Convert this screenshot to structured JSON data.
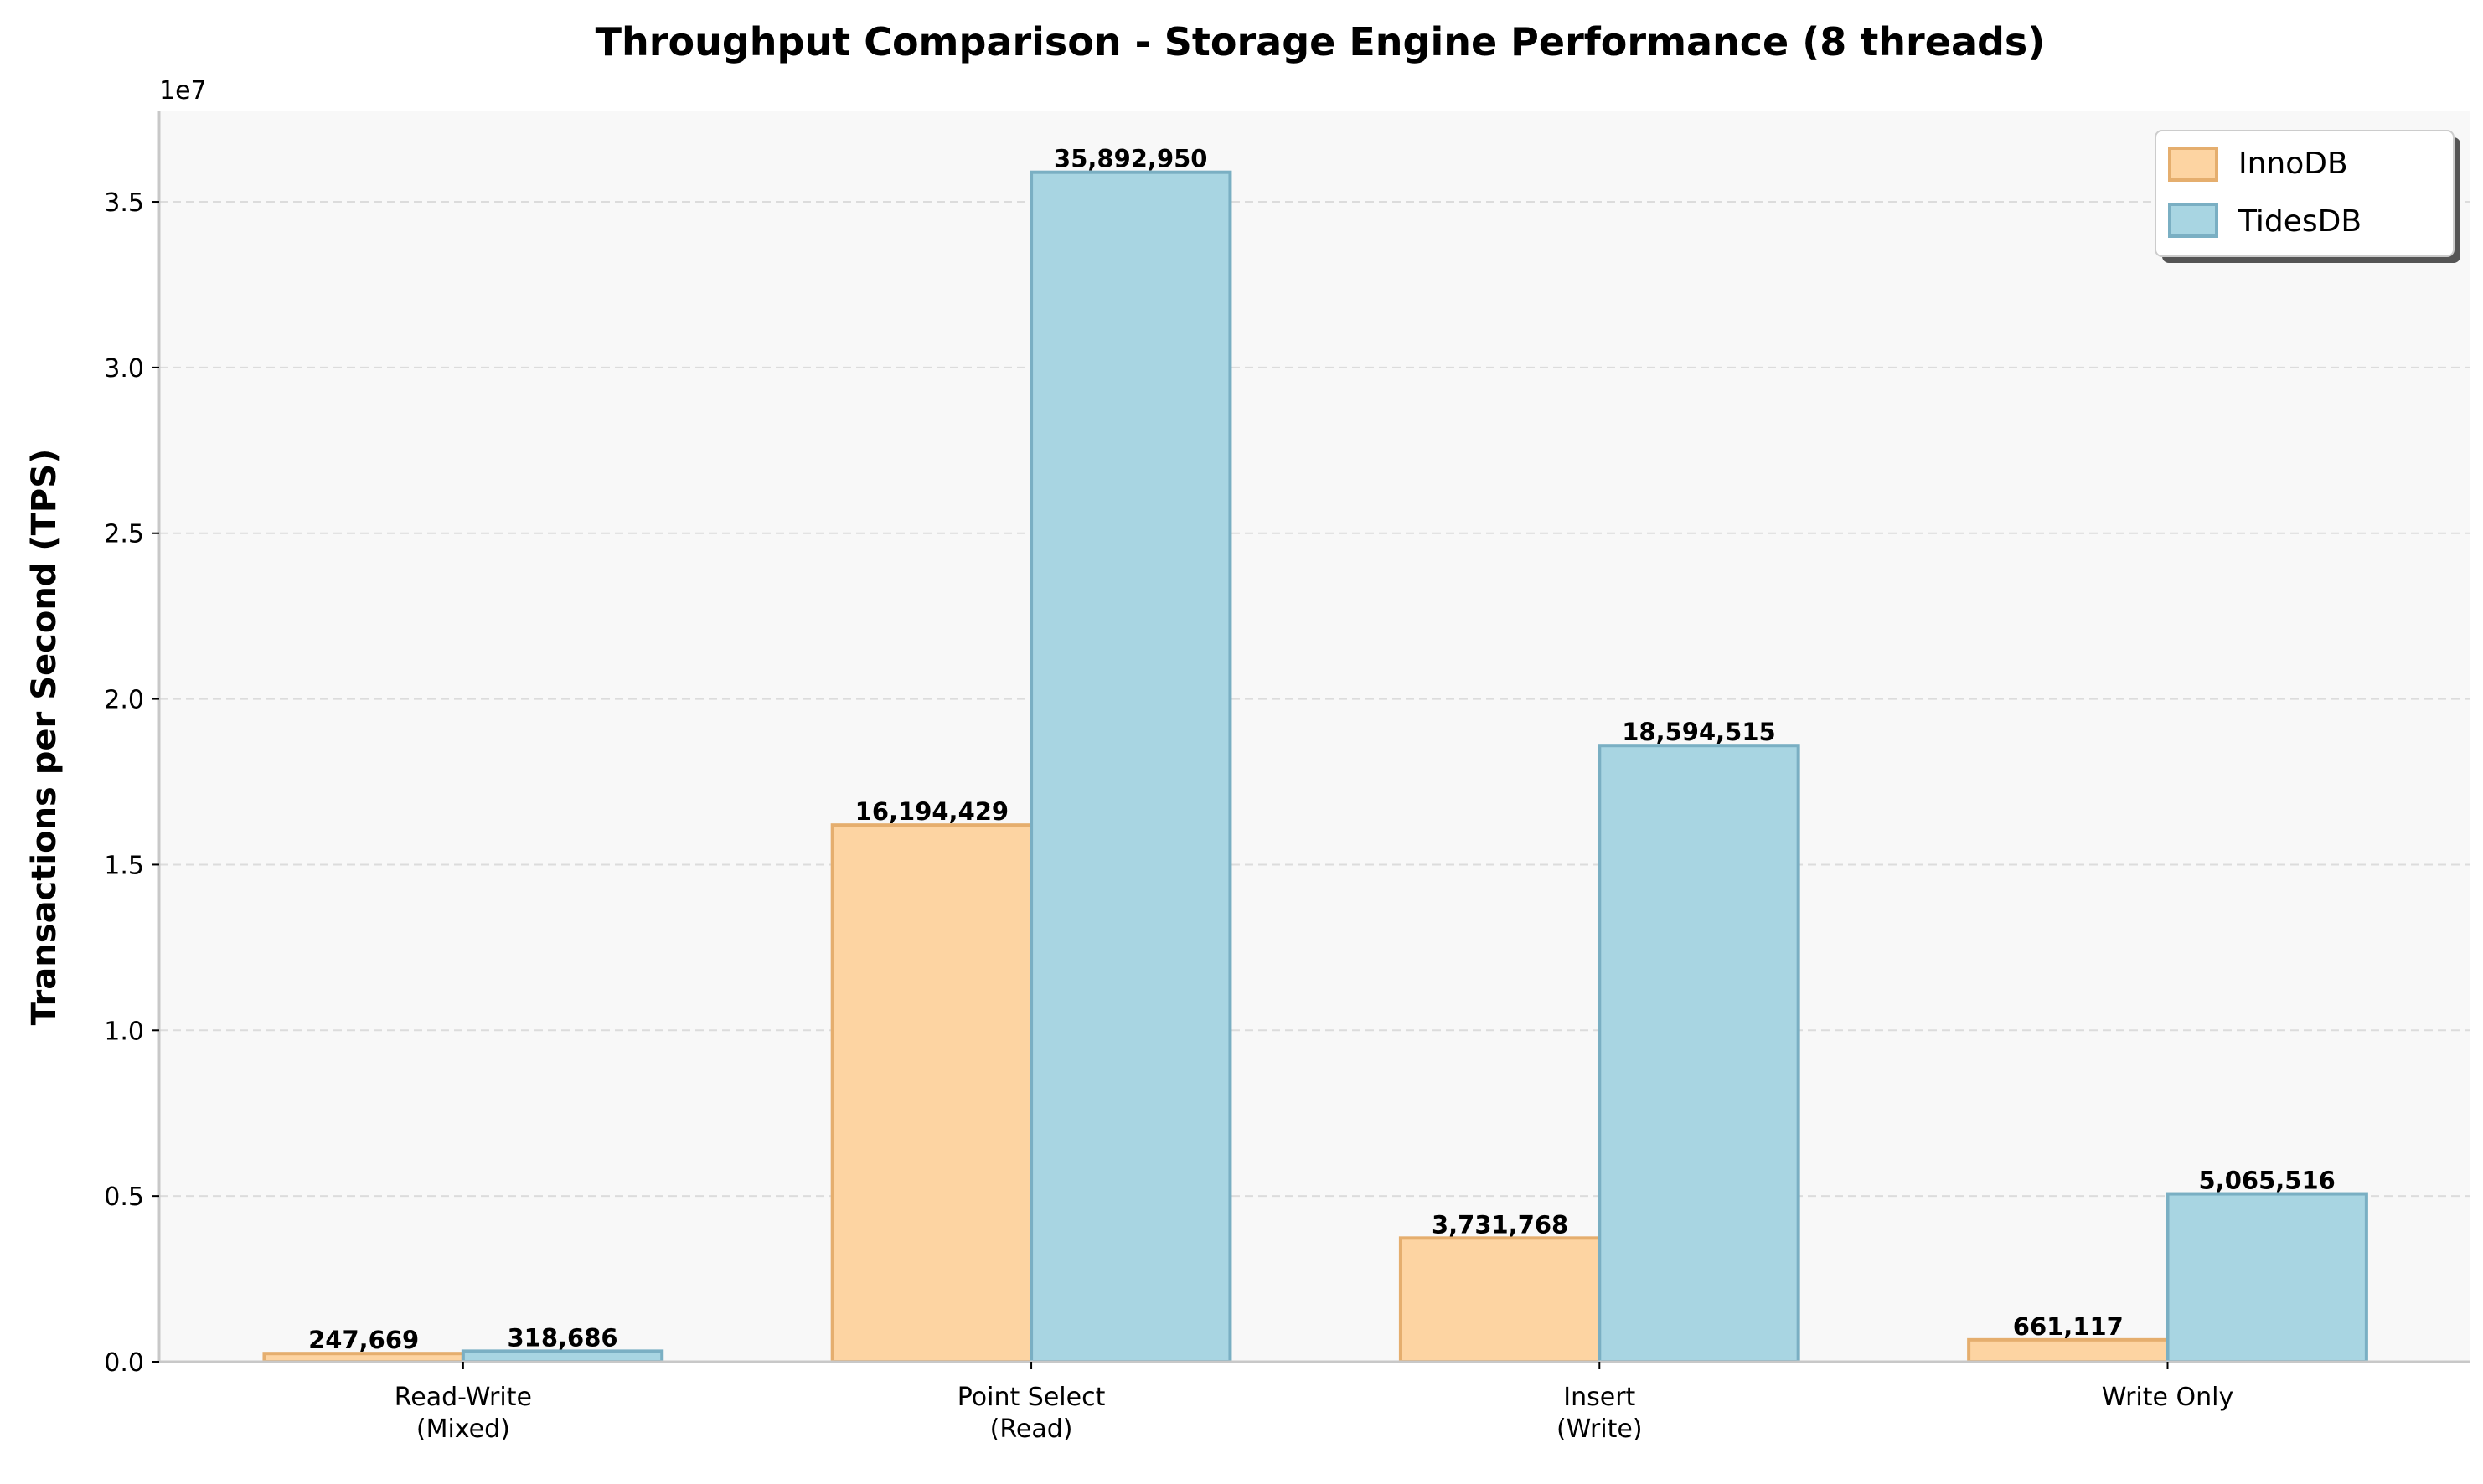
{
  "chart_data": {
    "type": "bar",
    "title": "Throughput Comparison - Storage Engine Performance (8 threads)",
    "xlabel": "",
    "ylabel": "Transactions per Second (TPS)",
    "y_offset_label": "1e7",
    "categories": [
      "Read-Write\n(Mixed)",
      "Point Select\n(Read)",
      "Insert\n(Write)",
      "Write Only"
    ],
    "series": [
      {
        "name": "InnoDB",
        "values": [
          247669,
          16194429,
          3731768,
          661117
        ],
        "labels": [
          "247,669",
          "16,194,429",
          "3,731,768",
          "661,117"
        ],
        "color": "#FDD4A2",
        "edge": "#E5AE6E"
      },
      {
        "name": "TidesDB",
        "values": [
          318686,
          35892950,
          18594515,
          5065516
        ],
        "labels": [
          "318,686",
          "35,892,950",
          "18,594,515",
          "5,065,516"
        ],
        "color": "#A8D5E2",
        "edge": "#7AAFC3"
      }
    ],
    "ylim": [
      0,
      37730000
    ],
    "yticks": [
      0,
      5000000,
      10000000,
      15000000,
      20000000,
      25000000,
      30000000,
      35000000
    ],
    "ytick_labels": [
      "0.0",
      "0.5",
      "1.0",
      "1.5",
      "2.0",
      "2.5",
      "3.0",
      "3.5"
    ],
    "grid": "horizontal dashed",
    "legend": "top-right",
    "background": "#F8F8F8"
  }
}
